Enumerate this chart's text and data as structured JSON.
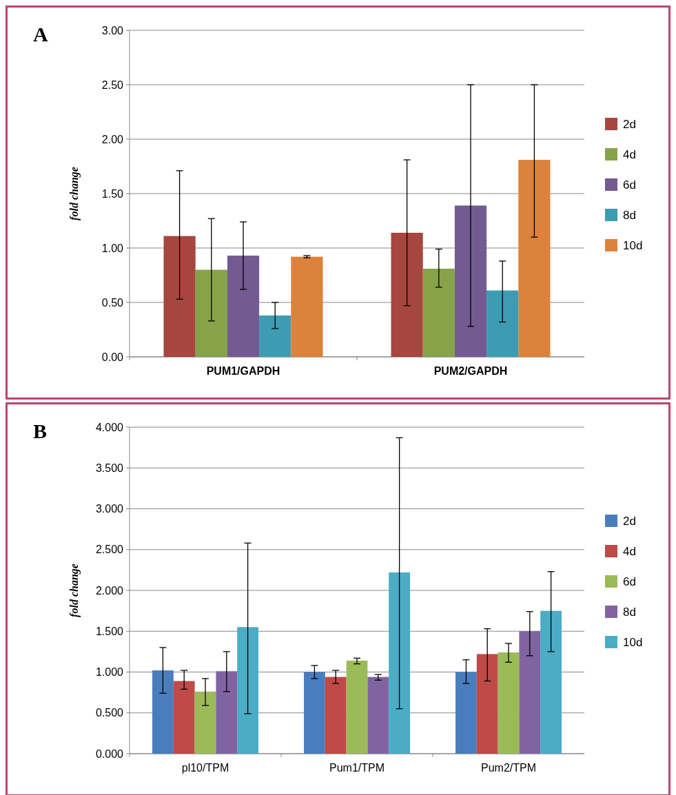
{
  "chart_data": [
    {
      "type": "bar",
      "title": "A",
      "ylabel": "fold change",
      "categories": [
        "PUM1/GAPDH",
        "PUM2/GAPDH"
      ],
      "ylim": [
        0,
        3
      ],
      "yticks": [
        {
          "value": 0,
          "label": "0.00"
        },
        {
          "value": 0.5,
          "label": "0.50"
        },
        {
          "value": 1,
          "label": "1.00"
        },
        {
          "value": 1.5,
          "label": "1.50"
        },
        {
          "value": 2,
          "label": "2.00"
        },
        {
          "value": 2.5,
          "label": "2.50"
        },
        {
          "value": 3,
          "label": "3.00"
        }
      ],
      "grid": "y",
      "legend": "right",
      "series": [
        {
          "name": "2d",
          "color": "#a5463f",
          "values": [
            1.11,
            1.14
          ],
          "errors": [
            [
              0.53,
              1.71
            ],
            [
              0.47,
              1.81
            ]
          ]
        },
        {
          "name": "4d",
          "color": "#86a34a",
          "values": [
            0.8,
            0.81
          ],
          "errors": [
            [
              0.33,
              1.27
            ],
            [
              0.64,
              0.99
            ]
          ]
        },
        {
          "name": "6d",
          "color": "#735a91",
          "values": [
            0.93,
            1.39
          ],
          "errors": [
            [
              0.62,
              1.24
            ],
            [
              0.28,
              2.5
            ]
          ]
        },
        {
          "name": "8d",
          "color": "#3e9cb2",
          "values": [
            0.38,
            0.61
          ],
          "errors": [
            [
              0.26,
              0.5
            ],
            [
              0.32,
              0.88
            ]
          ]
        },
        {
          "name": "10d",
          "color": "#dc823c",
          "values": [
            0.92,
            1.81
          ],
          "errors": [
            [
              0.91,
              0.93
            ],
            [
              1.1,
              2.5
            ]
          ]
        }
      ]
    },
    {
      "type": "bar",
      "title": "B",
      "ylabel": "fold change",
      "categories": [
        "pl10/TPM",
        "Pum1/TPM",
        "Pum2/TPM"
      ],
      "ylim": [
        0,
        4
      ],
      "yticks": [
        {
          "value": 0,
          "label": "0.000"
        },
        {
          "value": 0.5,
          "label": "0.500"
        },
        {
          "value": 1,
          "label": "1.000"
        },
        {
          "value": 1.5,
          "label": "1.500"
        },
        {
          "value": 2,
          "label": "2.000"
        },
        {
          "value": 2.5,
          "label": "2.500"
        },
        {
          "value": 3,
          "label": "3.000"
        },
        {
          "value": 3.5,
          "label": "3.500"
        },
        {
          "value": 4,
          "label": "4.000"
        }
      ],
      "grid": "y",
      "legend": "right",
      "series": [
        {
          "name": "2d",
          "color": "#4a7dbd",
          "values": [
            1.02,
            1.0,
            1.0
          ],
          "errors": [
            [
              0.74,
              1.3
            ],
            [
              0.92,
              1.08
            ],
            [
              0.86,
              1.15
            ]
          ]
        },
        {
          "name": "4d",
          "color": "#bf4b48",
          "values": [
            0.89,
            0.94,
            1.22
          ],
          "errors": [
            [
              0.79,
              1.02
            ],
            [
              0.86,
              1.02
            ],
            [
              0.89,
              1.53
            ]
          ]
        },
        {
          "name": "6d",
          "color": "#9bbb58",
          "values": [
            0.76,
            1.14,
            1.24
          ],
          "errors": [
            [
              0.59,
              0.92
            ],
            [
              1.1,
              1.17
            ],
            [
              1.12,
              1.35
            ]
          ]
        },
        {
          "name": "8d",
          "color": "#8064a2",
          "values": [
            1.01,
            0.94,
            1.5
          ],
          "errors": [
            [
              0.76,
              1.25
            ],
            [
              0.9,
              0.97
            ],
            [
              1.2,
              1.74
            ]
          ]
        },
        {
          "name": "10d",
          "color": "#4bacc6",
          "values": [
            1.55,
            2.22,
            1.75
          ],
          "errors": [
            [
              0.49,
              2.58
            ],
            [
              0.55,
              3.87
            ],
            [
              1.25,
              2.23
            ]
          ]
        }
      ]
    }
  ]
}
